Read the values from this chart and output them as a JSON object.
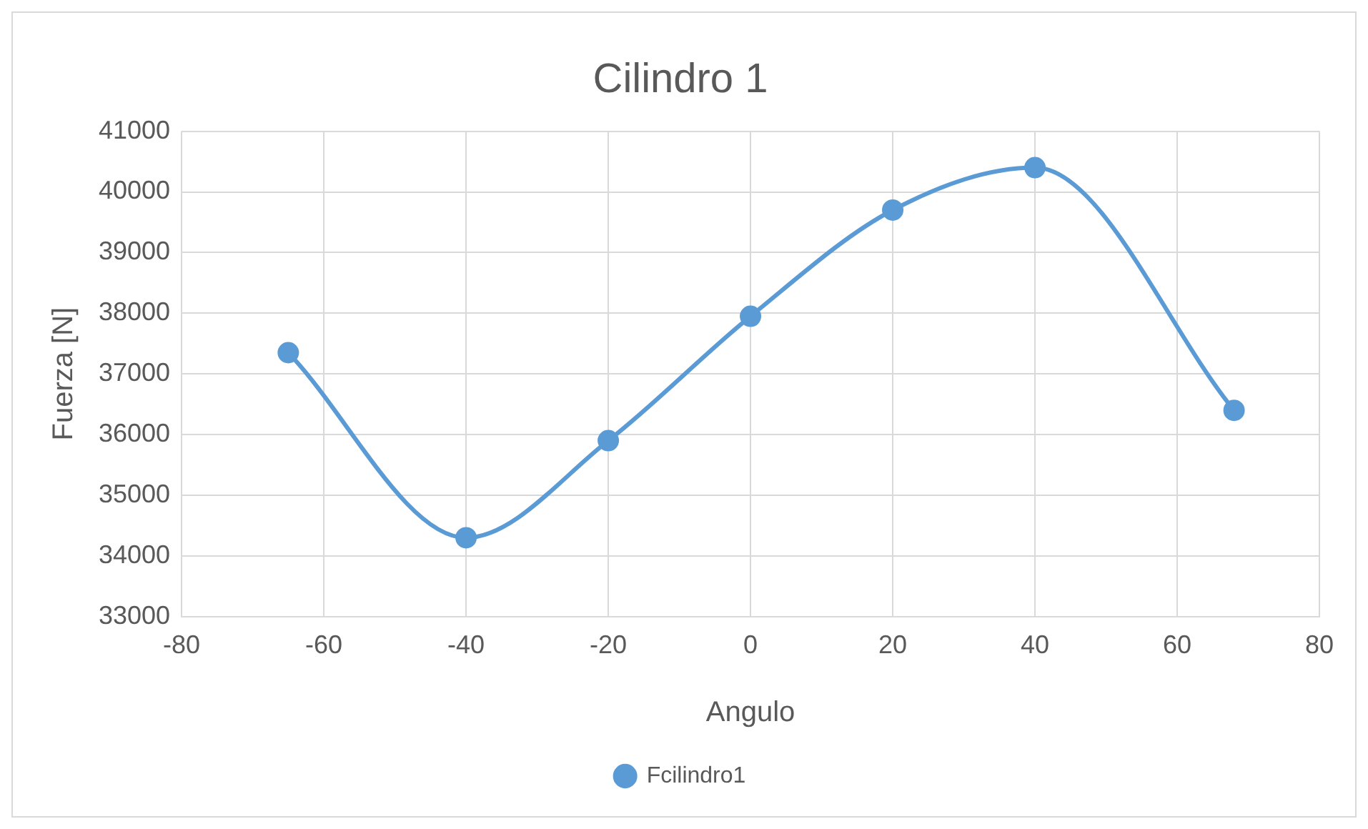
{
  "chart_data": {
    "type": "line",
    "title": "Cilindro 1",
    "xlabel": "Angulo",
    "ylabel": "Fuerza [N]",
    "x": [
      -65,
      -40,
      -20,
      0,
      20,
      40,
      68
    ],
    "series": [
      {
        "name": "Fcilindro1",
        "color": "#5b9bd5",
        "values": [
          37350,
          34300,
          35900,
          37950,
          39700,
          40400,
          36400
        ]
      }
    ],
    "xlim": [
      -80,
      80
    ],
    "xticks": [
      -80,
      -60,
      -40,
      -20,
      0,
      20,
      40,
      60,
      80
    ],
    "ylim": [
      33000,
      41000
    ],
    "yticks": [
      33000,
      34000,
      35000,
      36000,
      37000,
      38000,
      39000,
      40000,
      41000
    ],
    "grid": true,
    "legend": "bottom",
    "marker": "circle",
    "line_style": "solid"
  }
}
